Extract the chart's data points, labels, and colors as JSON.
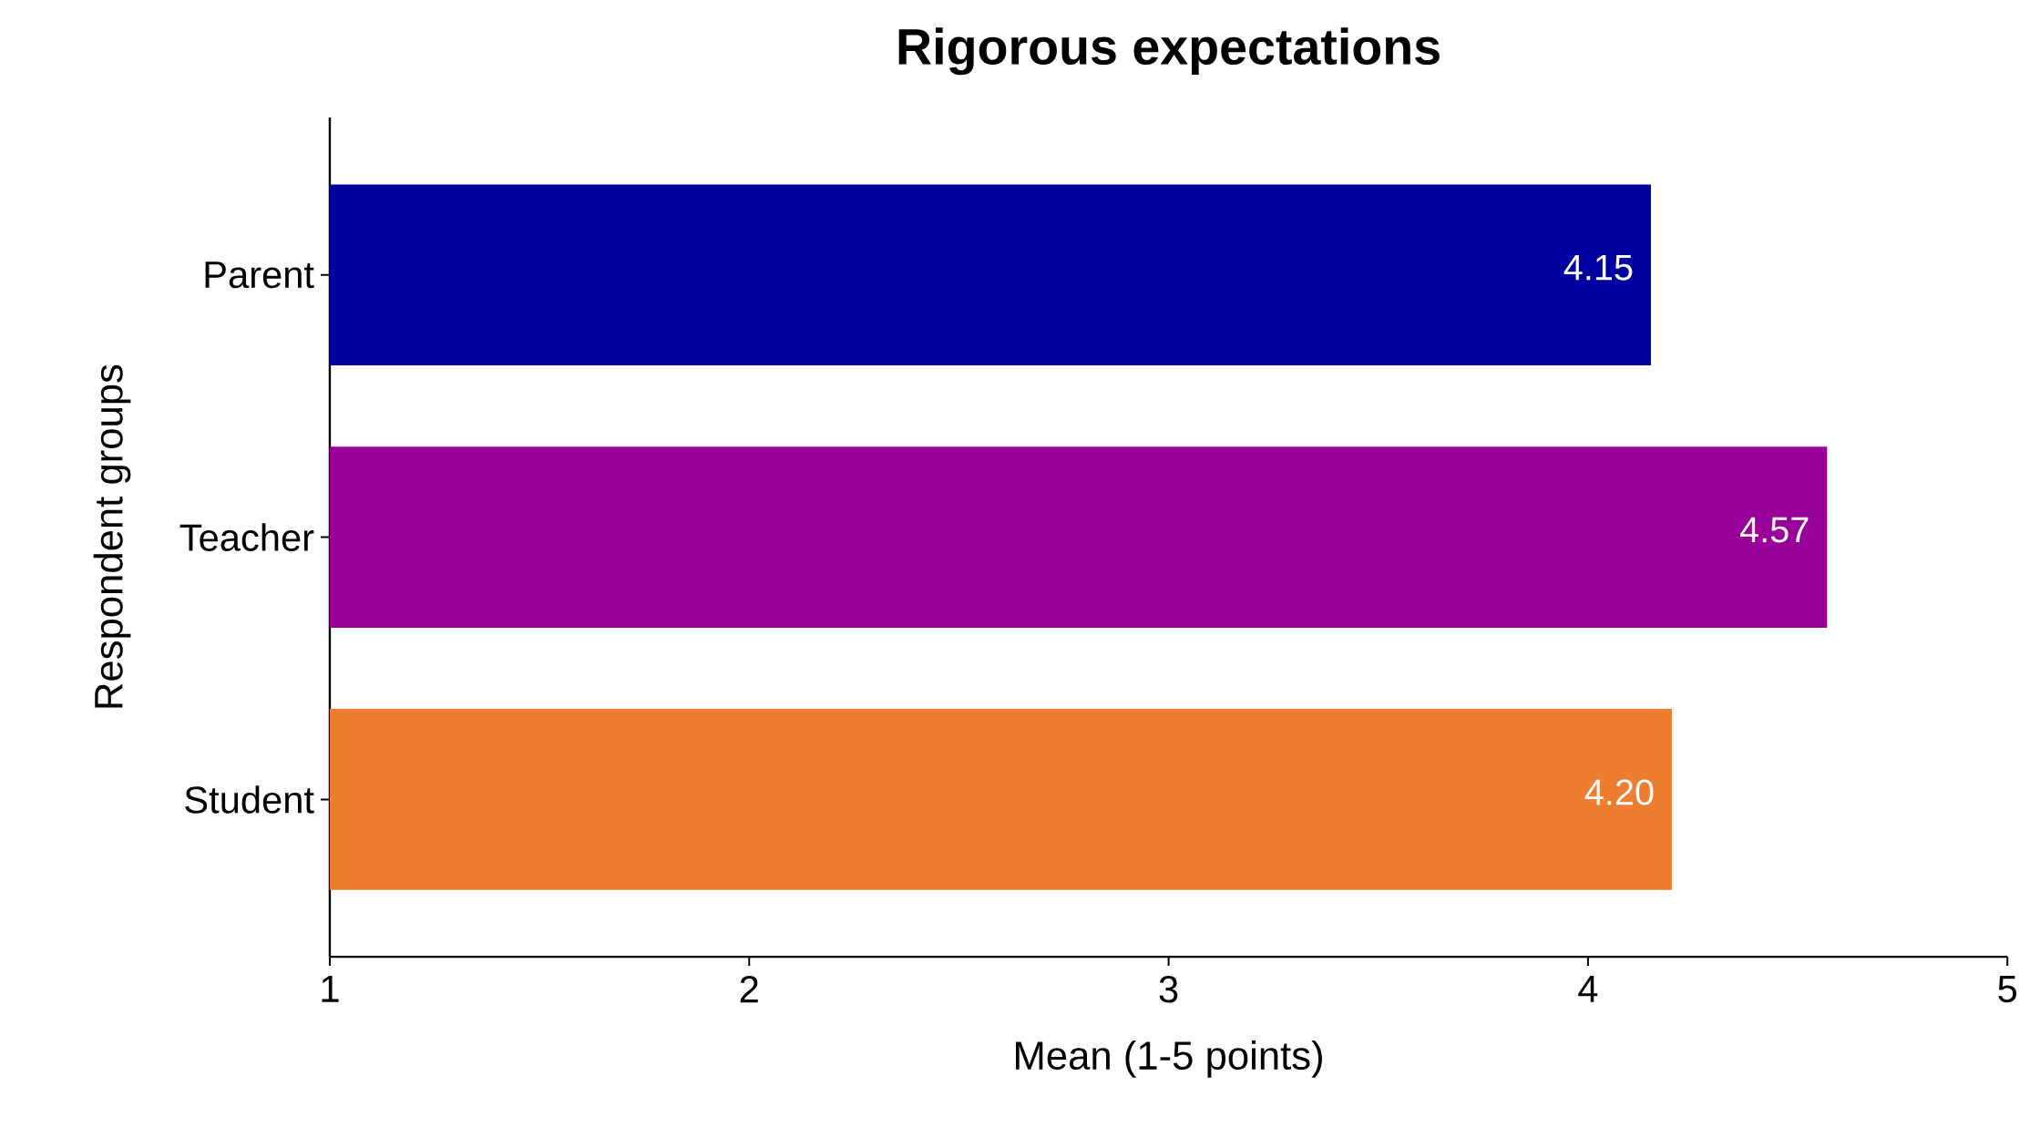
{
  "chart_data": {
    "type": "bar",
    "orientation": "horizontal",
    "title": "Rigorous expectations",
    "xlabel": "Mean (1-5 points)",
    "ylabel": "Respondent groups",
    "categories": [
      "Parent",
      "Teacher",
      "Student"
    ],
    "values": [
      4.15,
      4.57,
      4.2
    ],
    "value_labels": [
      "4.15",
      "4.57",
      "4.20"
    ],
    "colors": [
      "#0000A0",
      "#990099",
      "#ED7D31"
    ],
    "xlim": [
      1,
      5
    ],
    "xticks": [
      1,
      2,
      3,
      4,
      5
    ]
  }
}
